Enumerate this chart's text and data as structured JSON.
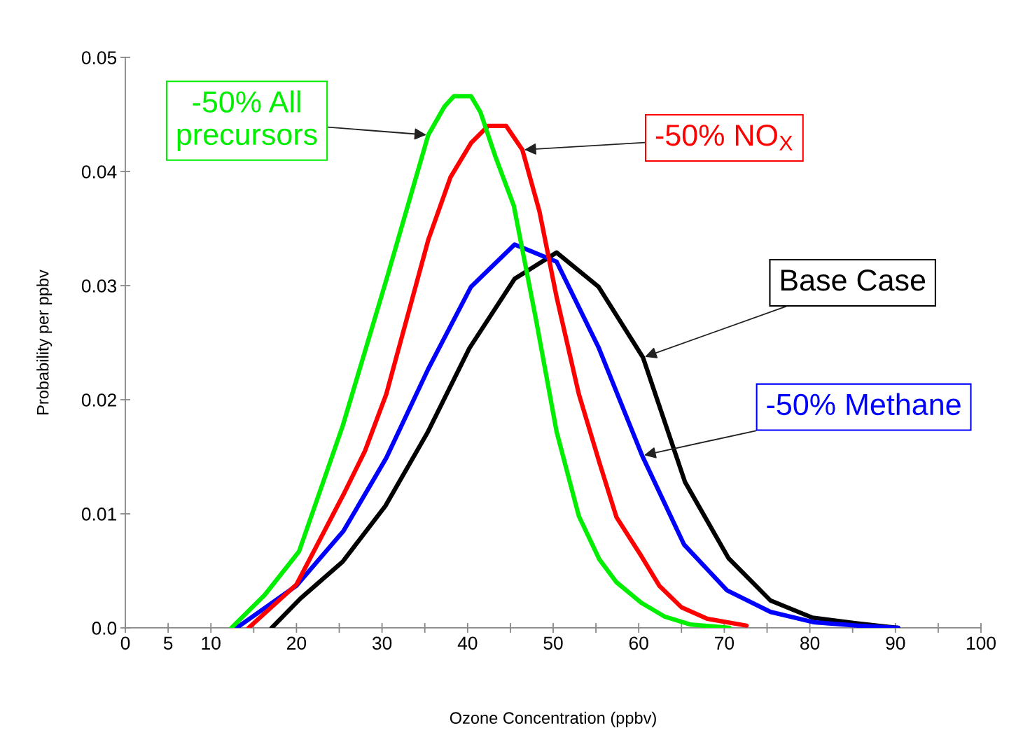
{
  "chart_data": {
    "type": "line",
    "xlabel": "Ozone Concentration (ppbv)",
    "ylabel": "Probability per ppbv",
    "xlim": [
      0,
      100
    ],
    "xticks": [
      0,
      5,
      10,
      {
        "value": 15,
        "label": null
      },
      20,
      {
        "value": 25,
        "label": null
      },
      30,
      {
        "value": 35,
        "label": null
      },
      40,
      {
        "value": 45,
        "label": null
      },
      50,
      {
        "value": 55,
        "label": null
      },
      60,
      {
        "value": 65,
        "label": null
      },
      70,
      {
        "value": 75,
        "label": null
      },
      80,
      {
        "value": 85,
        "label": null
      },
      90,
      {
        "value": 95,
        "label": null
      },
      100
    ],
    "ylim": [
      0,
      0.05
    ],
    "yticks": [
      {
        "value": 0,
        "label": "0.0"
      },
      0.01,
      0.02,
      0.03,
      0.04,
      0.05
    ],
    "grid": false,
    "legend": false,
    "marker": "none",
    "line_style": "solid",
    "series": [
      {
        "name": "Base Case",
        "color": "#000000",
        "x": [
          17.1,
          20.5,
          25.4,
          30.4,
          35.3,
          40.2,
          45.5,
          50.4,
          55.3,
          60.5,
          65.4,
          70.5,
          75.4,
          80.3,
          85.4,
          90.3
        ],
        "values": [
          0,
          0.0026,
          0.0058,
          0.0107,
          0.0171,
          0.0245,
          0.0306,
          0.0329,
          0.0299,
          0.0237,
          0.0128,
          0.0061,
          0.0024,
          0.0009,
          0.0004,
          0
        ]
      },
      {
        "name": "-50% Methane",
        "color": "#0000ff",
        "x": [
          13,
          20,
          25.5,
          30.5,
          35.4,
          40.4,
          45.5,
          50.4,
          55.3,
          60.4,
          65.3,
          70.3,
          75.4,
          80.4,
          85.4,
          90.3
        ],
        "values": [
          0,
          0.0037,
          0.0085,
          0.0149,
          0.0227,
          0.0299,
          0.0336,
          0.0321,
          0.0246,
          0.0151,
          0.0073,
          0.0033,
          0.0014,
          0.0005,
          0.0002,
          0
        ]
      },
      {
        "name": "-50% NO$_{X}$",
        "color": "#ff0000",
        "x": [
          14.4,
          20,
          25.5,
          28,
          30.5,
          35.4,
          38,
          40.4,
          42.4,
          44.5,
          46.4,
          48.4,
          50.4,
          53,
          55.4,
          57.4,
          60.3,
          62.4,
          65,
          68,
          72.6
        ],
        "values": [
          0,
          0.0038,
          0.0117,
          0.0155,
          0.0205,
          0.034,
          0.0395,
          0.0425,
          0.044,
          0.044,
          0.0419,
          0.0365,
          0.029,
          0.0205,
          0.0145,
          0.0097,
          0.0063,
          0.0037,
          0.0018,
          0.0008,
          0.0002
        ]
      },
      {
        "name": "-50% All precursors",
        "color": "#00ee00",
        "x": [
          12.4,
          16.3,
          20.3,
          25.4,
          30.5,
          35.4,
          37.3,
          38.4,
          40.4,
          41.5,
          43.3,
          45.4,
          48,
          50.4,
          53,
          55.4,
          57.4,
          60.3,
          63,
          66,
          70.6
        ],
        "values": [
          0,
          0.0029,
          0.0067,
          0.0177,
          0.0305,
          0.0432,
          0.0457,
          0.0466,
          0.0466,
          0.0452,
          0.0412,
          0.037,
          0.027,
          0.0172,
          0.0098,
          0.006,
          0.004,
          0.0022,
          0.001,
          0.0003,
          0
        ]
      }
    ]
  }
}
